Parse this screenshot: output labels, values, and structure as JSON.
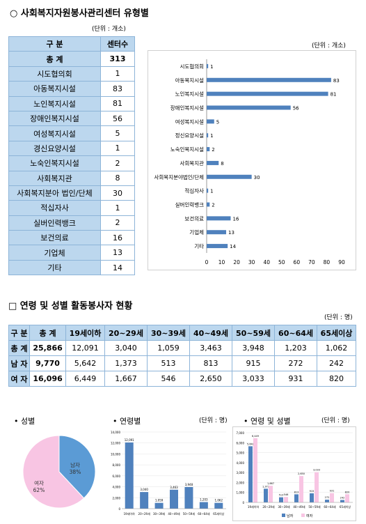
{
  "section1": {
    "title": "○ 사회복지자원봉사관리센터 유형별",
    "unit_table": "(단위 : 개소)",
    "unit_chart": "(단위 : 개소)",
    "header": {
      "col1": "구    분",
      "col2": "센터수"
    },
    "total": {
      "label": "총    계",
      "value": "313"
    },
    "rows": [
      {
        "label": "시도협의회",
        "value": "1"
      },
      {
        "label": "아동복지시설",
        "value": "83"
      },
      {
        "label": "노인복지시설",
        "value": "81"
      },
      {
        "label": "장애인복지시설",
        "value": "56"
      },
      {
        "label": "여성복지시설",
        "value": "5"
      },
      {
        "label": "경신요양시설",
        "value": "1"
      },
      {
        "label": "노숙인복지시설",
        "value": "2"
      },
      {
        "label": "사회복지관",
        "value": "8"
      },
      {
        "label": "사회복지분아 법인/단체",
        "value": "30"
      },
      {
        "label": "적십자사",
        "value": "1"
      },
      {
        "label": "실버인력뱅크",
        "value": "2"
      },
      {
        "label": "보건의료",
        "value": "16"
      },
      {
        "label": "기업체",
        "value": "13"
      },
      {
        "label": "기타",
        "value": "14"
      }
    ]
  },
  "section2": {
    "title": "□  연령 및 성별 활동봉사자 현황",
    "unit": "(단위 : 명)",
    "header": [
      "구 분",
      "총 계",
      "19세이하",
      "20~29세",
      "30~39세",
      "40~49세",
      "50~59세",
      "60~64세",
      "65세이상"
    ],
    "rows": [
      {
        "label": "총 계",
        "total": "25,866",
        "values": [
          "12,091",
          "3,040",
          "1,059",
          "3,463",
          "3,948",
          "1,203",
          "1,062"
        ]
      },
      {
        "label": "남 자",
        "total": "9,770",
        "values": [
          "5,642",
          "1,373",
          "513",
          "813",
          "915",
          "272",
          "242"
        ]
      },
      {
        "label": "여 자",
        "total": "16,096",
        "values": [
          "6,449",
          "1,667",
          "546",
          "2,650",
          "3,033",
          "931",
          "820"
        ]
      }
    ]
  },
  "mini": {
    "gender_title": "• 성별",
    "age_title": "• 연령별",
    "age_unit": "(단위 : 명)",
    "agegender_title": "• 연령 및 성별",
    "agegender_unit": "(단위 : 명)"
  },
  "chart_data": [
    {
      "type": "bar",
      "orientation": "horizontal",
      "categories": [
        "시도협의회",
        "아동복지시설",
        "노인복지시설",
        "장애인복지시설",
        "여성복지시설",
        "정신요양시설",
        "노숙인복지시설",
        "사회복지관",
        "사회복지분야법인/단체",
        "적십자사",
        "실버인력뱅크",
        "보건의료",
        "기업체",
        "기타"
      ],
      "values": [
        1,
        83,
        81,
        56,
        5,
        1,
        2,
        8,
        30,
        1,
        2,
        16,
        13,
        14
      ],
      "xlim": [
        0,
        90
      ],
      "xticks": [
        "0",
        "10",
        "20",
        "30",
        "40",
        "50",
        "60",
        "70",
        "80",
        "90"
      ],
      "color": "#4f81bd"
    },
    {
      "type": "pie",
      "labels": [
        "남자",
        "여자"
      ],
      "values": [
        38,
        62
      ],
      "value_labels": [
        "38%",
        "62%"
      ],
      "colors": [
        "#5b9bd5",
        "#f8c5e3"
      ]
    },
    {
      "type": "bar",
      "categories": [
        "19세이하",
        "20~29세",
        "30~39세",
        "40~49세",
        "50~59세",
        "60~64세",
        "65세이상"
      ],
      "values": [
        12091,
        3040,
        1059,
        3463,
        3948,
        1203,
        1062
      ],
      "value_labels": [
        "12,091",
        "3,040",
        "1,059",
        "3,463",
        "3,948",
        "1,203",
        "1,062"
      ],
      "ylim": [
        0,
        14000
      ],
      "yticks": [
        "0",
        "2,000",
        "4,000",
        "6,000",
        "8,000",
        "10,000",
        "12,000",
        "14,000"
      ],
      "color": "#4f81bd"
    },
    {
      "type": "bar",
      "categories": [
        "19세이하",
        "20~29세",
        "30~39세",
        "40~49세",
        "50~59세",
        "60~64세",
        "65세이상"
      ],
      "series": [
        {
          "name": "남자",
          "values": [
            5642,
            1373,
            513,
            813,
            915,
            272,
            242
          ],
          "value_labels": [
            "5,642",
            "1,373",
            "513",
            "813",
            "915",
            "272",
            "242"
          ],
          "color": "#4f81bd"
        },
        {
          "name": "여자",
          "values": [
            6449,
            1667,
            546,
            2650,
            3033,
            931,
            820
          ],
          "value_labels": [
            "6,449",
            "1,667",
            "546",
            "2,650",
            "3,033",
            "931",
            "820"
          ],
          "color": "#f8c5e3"
        }
      ],
      "ylim": [
        0,
        7000
      ],
      "yticks": [
        "0",
        "1,000",
        "2,000",
        "3,000",
        "4,000",
        "5,000",
        "6,000",
        "7,000"
      ]
    }
  ]
}
